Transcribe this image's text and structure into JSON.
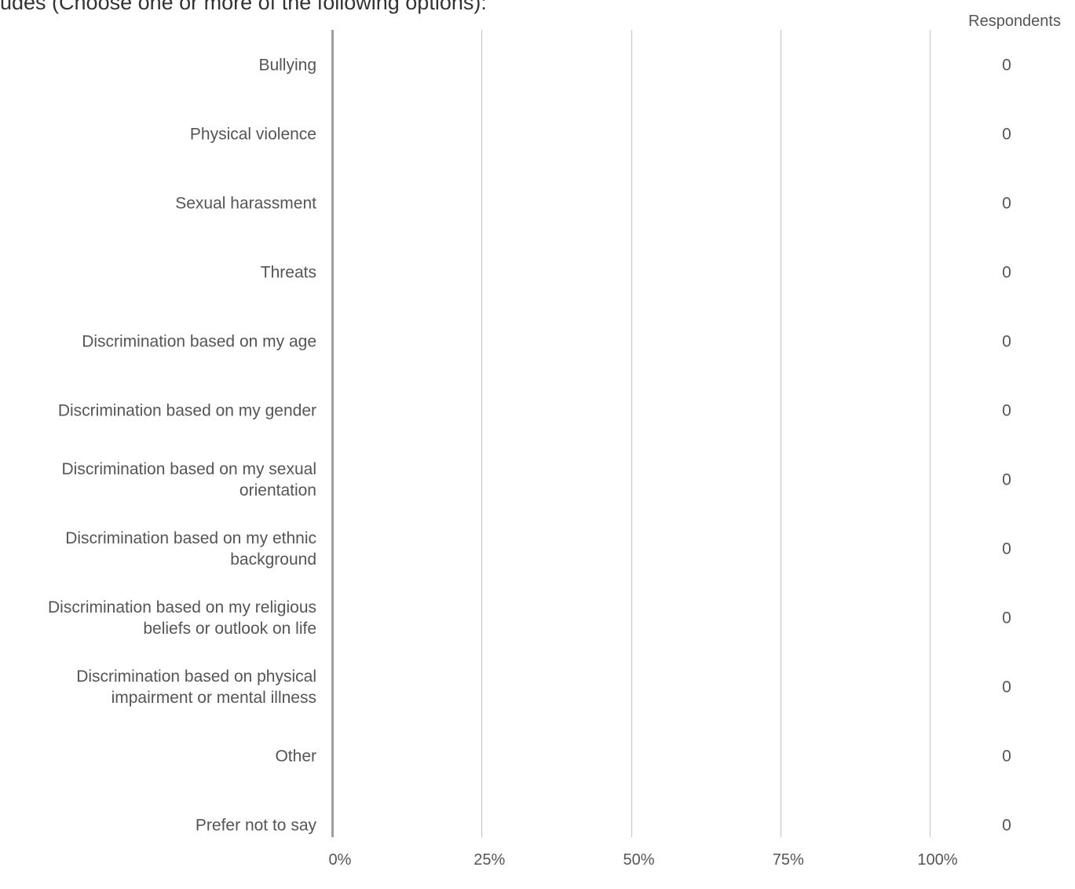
{
  "question": {
    "title_fragment": "udes (Choose one or more of the following options):"
  },
  "chart_data": {
    "type": "bar",
    "orientation": "horizontal",
    "categories": [
      [
        "Bullying"
      ],
      [
        "Physical violence"
      ],
      [
        "Sexual harassment"
      ],
      [
        "Threats"
      ],
      [
        "Discrimination based on my age"
      ],
      [
        "Discrimination based on my gender"
      ],
      [
        "Discrimination based on my sexual",
        "orientation"
      ],
      [
        "Discrimination based on my ethnic",
        "background"
      ],
      [
        "Discrimination based on my religious",
        "beliefs or outlook on life"
      ],
      [
        "Discrimination based on physical",
        "impairment or mental illness"
      ],
      [
        "Other"
      ],
      [
        "Prefer not to say"
      ]
    ],
    "values_percent": [
      0,
      0,
      0,
      0,
      0,
      0,
      0,
      0,
      0,
      0,
      0,
      0
    ],
    "respondents": [
      0,
      0,
      0,
      0,
      0,
      0,
      0,
      0,
      0,
      0,
      0,
      0
    ],
    "respondents_header": "Respondents",
    "x_ticks": [
      "0%",
      "25%",
      "50%",
      "75%",
      "100%"
    ],
    "xlim": [
      0,
      100
    ],
    "grid": true,
    "colors": {
      "gridline": "#c8c8c8",
      "axis": "#9e9e9e",
      "label": "#555555",
      "bar": "#5b9bd5"
    }
  }
}
